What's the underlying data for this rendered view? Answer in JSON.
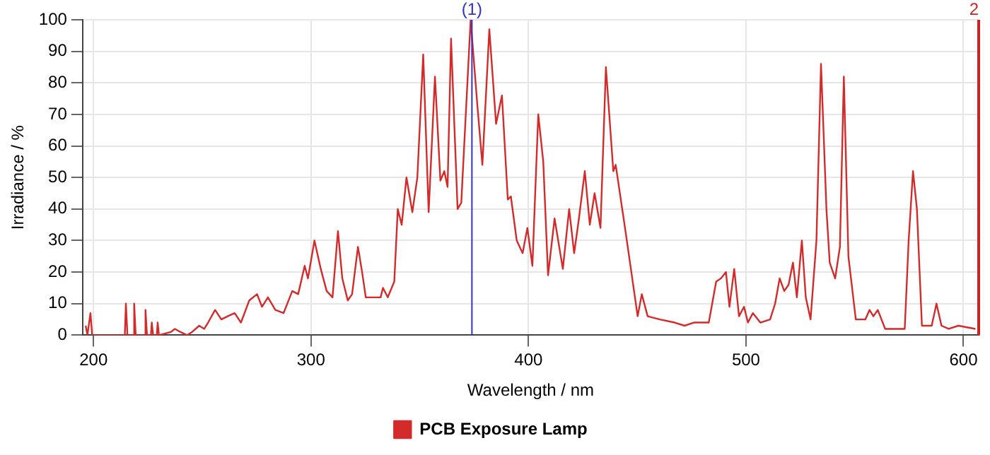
{
  "chart_data": {
    "type": "line",
    "xlabel": "Wavelength / nm",
    "ylabel": "Irradiance / %",
    "xlim": [
      195,
      607
    ],
    "xticks": [
      200,
      300,
      400,
      500,
      600
    ],
    "ylim": [
      0,
      100
    ],
    "yticks": [
      0,
      10,
      20,
      30,
      40,
      50,
      60,
      70,
      80,
      90,
      100
    ],
    "grid": true,
    "legend": "bottom",
    "marker": "none",
    "line_style": "solid",
    "ref_lines": [
      {
        "axis": "x",
        "value": 374,
        "color": "#3333cc"
      },
      {
        "axis": "x",
        "value": 607,
        "color": "#cc2222"
      }
    ],
    "annotations": [
      {
        "text": "(1)",
        "x": 374,
        "y": 100
      },
      {
        "text": "2",
        "x": 607,
        "y": 100
      }
    ],
    "series": [
      {
        "name": "PCB Exposure Lamp",
        "color": "#d42a2a",
        "x": [
          196.4,
          197.2,
          198.6,
          199.4,
          214.4,
          214.9,
          215.6,
          218.2,
          218.7,
          219.4,
          223.5,
          223.9,
          224.6,
          226.4,
          226.8,
          227.4,
          229.1,
          229.5,
          230.1,
          235.6,
          237.4,
          240,
          243,
          245.3,
          248.6,
          250.9,
          252.7,
          255.9,
          258.8,
          261.7,
          264.9,
          267.8,
          271.6,
          275.2,
          277.5,
          280.2,
          283.6,
          287.4,
          291.4,
          294.1,
          297.1,
          298.6,
          301.6,
          304.5,
          307.2,
          309.9,
          312.4,
          314.4,
          316.9,
          318.9,
          321.6,
          323.5,
          325.2,
          332,
          333.1,
          335.3,
          338.3,
          339.9,
          341.7,
          343.9,
          346.6,
          348.9,
          351.6,
          354.1,
          357,
          359.5,
          361.3,
          362.8,
          364.4,
          367.4,
          369.1,
          373.4,
          376.6,
          378.8,
          382,
          385.1,
          387.8,
          390.5,
          391.9,
          394.6,
          397.3,
          399.5,
          401.8,
          404.5,
          406.8,
          409,
          412,
          415.8,
          418.7,
          421,
          423.2,
          425.9,
          428.2,
          430.4,
          433.1,
          435.6,
          439,
          440.1,
          444.6,
          450.2,
          452.1,
          454.8,
          460.4,
          467.2,
          471.8,
          476,
          482.9,
          486.3,
          488.5,
          490.8,
          492.4,
          494.6,
          496.8,
          499.1,
          500.9,
          503.2,
          506.6,
          511.1,
          513.4,
          515.5,
          517.6,
          519.6,
          521.6,
          523.4,
          525.7,
          527.5,
          529.7,
          532.4,
          534.5,
          537,
          538.5,
          541,
          543.2,
          545,
          547.1,
          550.5,
          554.9,
          556.8,
          558.6,
          560.6,
          564,
          573,
          574.8,
          576.8,
          578.6,
          580.9,
          585.4,
          587.6,
          589.9,
          593.2,
          597.7,
          605.5
        ],
        "values": [
          3,
          0,
          7,
          0,
          0,
          10,
          0,
          0,
          10,
          0,
          0,
          8,
          0,
          0,
          4,
          0,
          0,
          4,
          0,
          1,
          2,
          1,
          0,
          1,
          3,
          2,
          4,
          8,
          5,
          6,
          7,
          4,
          11,
          13,
          9,
          12,
          8,
          7,
          14,
          13,
          22,
          18,
          30,
          21,
          14,
          12,
          33,
          18,
          11,
          13,
          28,
          20,
          12,
          12,
          15,
          12,
          17,
          40,
          35,
          50,
          39,
          50,
          89,
          39,
          82,
          49,
          52,
          47,
          94,
          40,
          42,
          100,
          72,
          54,
          97,
          67,
          76,
          43,
          44,
          30,
          26,
          34,
          22,
          70,
          55,
          19,
          37,
          21,
          40,
          26,
          37,
          52,
          35,
          45,
          34,
          85,
          52,
          54,
          33,
          6,
          13,
          6,
          5,
          4,
          3,
          4,
          4,
          17,
          18,
          20,
          9,
          21,
          6,
          9,
          4,
          7,
          4,
          5,
          10,
          18,
          14,
          16,
          23,
          12,
          30,
          12,
          5,
          30,
          86,
          40,
          23,
          18,
          28,
          82,
          25,
          5,
          5,
          8,
          6,
          8,
          2,
          2,
          30,
          52,
          40,
          3,
          3,
          10,
          3,
          2,
          3,
          2
        ]
      }
    ]
  }
}
